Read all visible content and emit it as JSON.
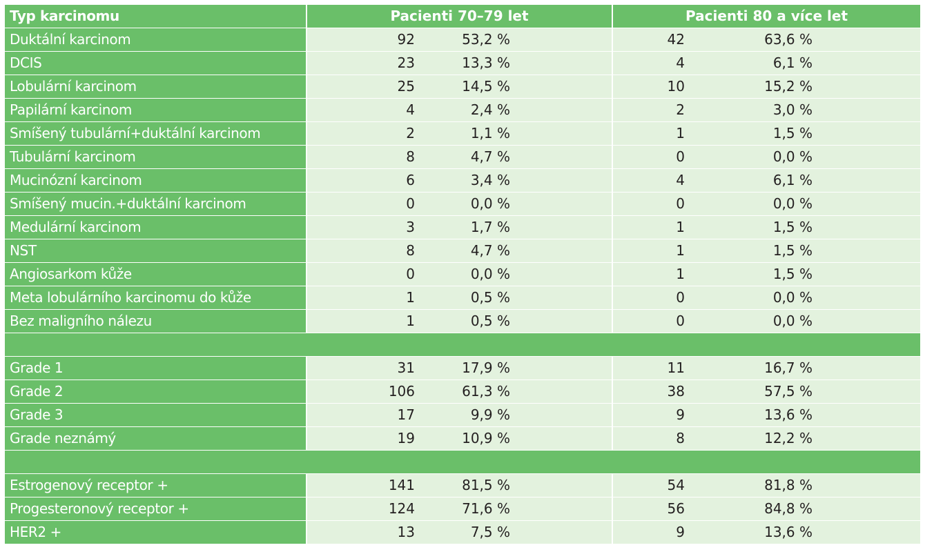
{
  "header": {
    "col1": "Typ karcinomu",
    "col2": "Pacienti 70–79 let",
    "col3": "Pacienti 80 a více let"
  },
  "rows": [
    {
      "label": "Duktální karcinom",
      "n1": "92",
      "p1": "53,2 %",
      "n2": "42",
      "p2": "63,6 %"
    },
    {
      "label": "DCIS",
      "n1": "23",
      "p1": "13,3 %",
      "n2": "4",
      "p2": "6,1 %"
    },
    {
      "label": "Lobulární karcinom",
      "n1": "25",
      "p1": "14,5 %",
      "n2": "10",
      "p2": "15,2 %"
    },
    {
      "label": "Papilární karcinom",
      "n1": "4",
      "p1": "2,4 %",
      "n2": "2",
      "p2": "3,0 %"
    },
    {
      "label": "Smíšený tubulární+duktální karcinom",
      "n1": "2",
      "p1": "1,1 %",
      "n2": "1",
      "p2": "1,5 %"
    },
    {
      "label": "Tubulární karcinom",
      "n1": "8",
      "p1": "4,7 %",
      "n2": "0",
      "p2": "0,0 %"
    },
    {
      "label": "Mucinózní karcinom",
      "n1": "6",
      "p1": "3,4 %",
      "n2": "4",
      "p2": "6,1 %"
    },
    {
      "label": "Smíšený mucin.+duktální karcinom",
      "n1": "0",
      "p1": "0,0 %",
      "n2": "0",
      "p2": "0,0 %"
    },
    {
      "label": "Medulární karcinom",
      "n1": "3",
      "p1": "1,7 %",
      "n2": "1",
      "p2": "1,5 %"
    },
    {
      "label": "NST",
      "n1": "8",
      "p1": "4,7 %",
      "n2": "1",
      "p2": "1,5 %"
    },
    {
      "label": "Angiosarkom kůže",
      "n1": "0",
      "p1": "0,0 %",
      "n2": "1",
      "p2": "1,5 %"
    },
    {
      "label": "Meta lobulárního karcinomu do kůže",
      "n1": "1",
      "p1": "0,5 %",
      "n2": "0",
      "p2": "0,0 %"
    },
    {
      "label": "Bez maligního nálezu",
      "n1": "1",
      "p1": "0,5 %",
      "n2": "0",
      "p2": "0,0 %"
    },
    {
      "separator": true
    },
    {
      "label": "Grade 1",
      "n1": "31",
      "p1": "17,9 %",
      "n2": "11",
      "p2": "16,7 %"
    },
    {
      "label": "Grade 2",
      "n1": "106",
      "p1": "61,3 %",
      "n2": "38",
      "p2": "57,5 %"
    },
    {
      "label": "Grade 3",
      "n1": "17",
      "p1": "9,9 %",
      "n2": "9",
      "p2": "13,6 %"
    },
    {
      "label": "Grade neznámý",
      "n1": "19",
      "p1": "10,9 %",
      "n2": "8",
      "p2": "12,2 %"
    },
    {
      "separator": true
    },
    {
      "label": "Estrogenový receptor +",
      "n1": "141",
      "p1": "81,5 %",
      "n2": "54",
      "p2": "81,8 %"
    },
    {
      "label": "Progesteronový receptor +",
      "n1": "124",
      "p1": "71,6 %",
      "n2": "56",
      "p2": "84,8 %"
    },
    {
      "label": "HER2 +",
      "n1": "13",
      "p1": "7,5 %",
      "n2": "9",
      "p2": "13,6 %"
    }
  ]
}
